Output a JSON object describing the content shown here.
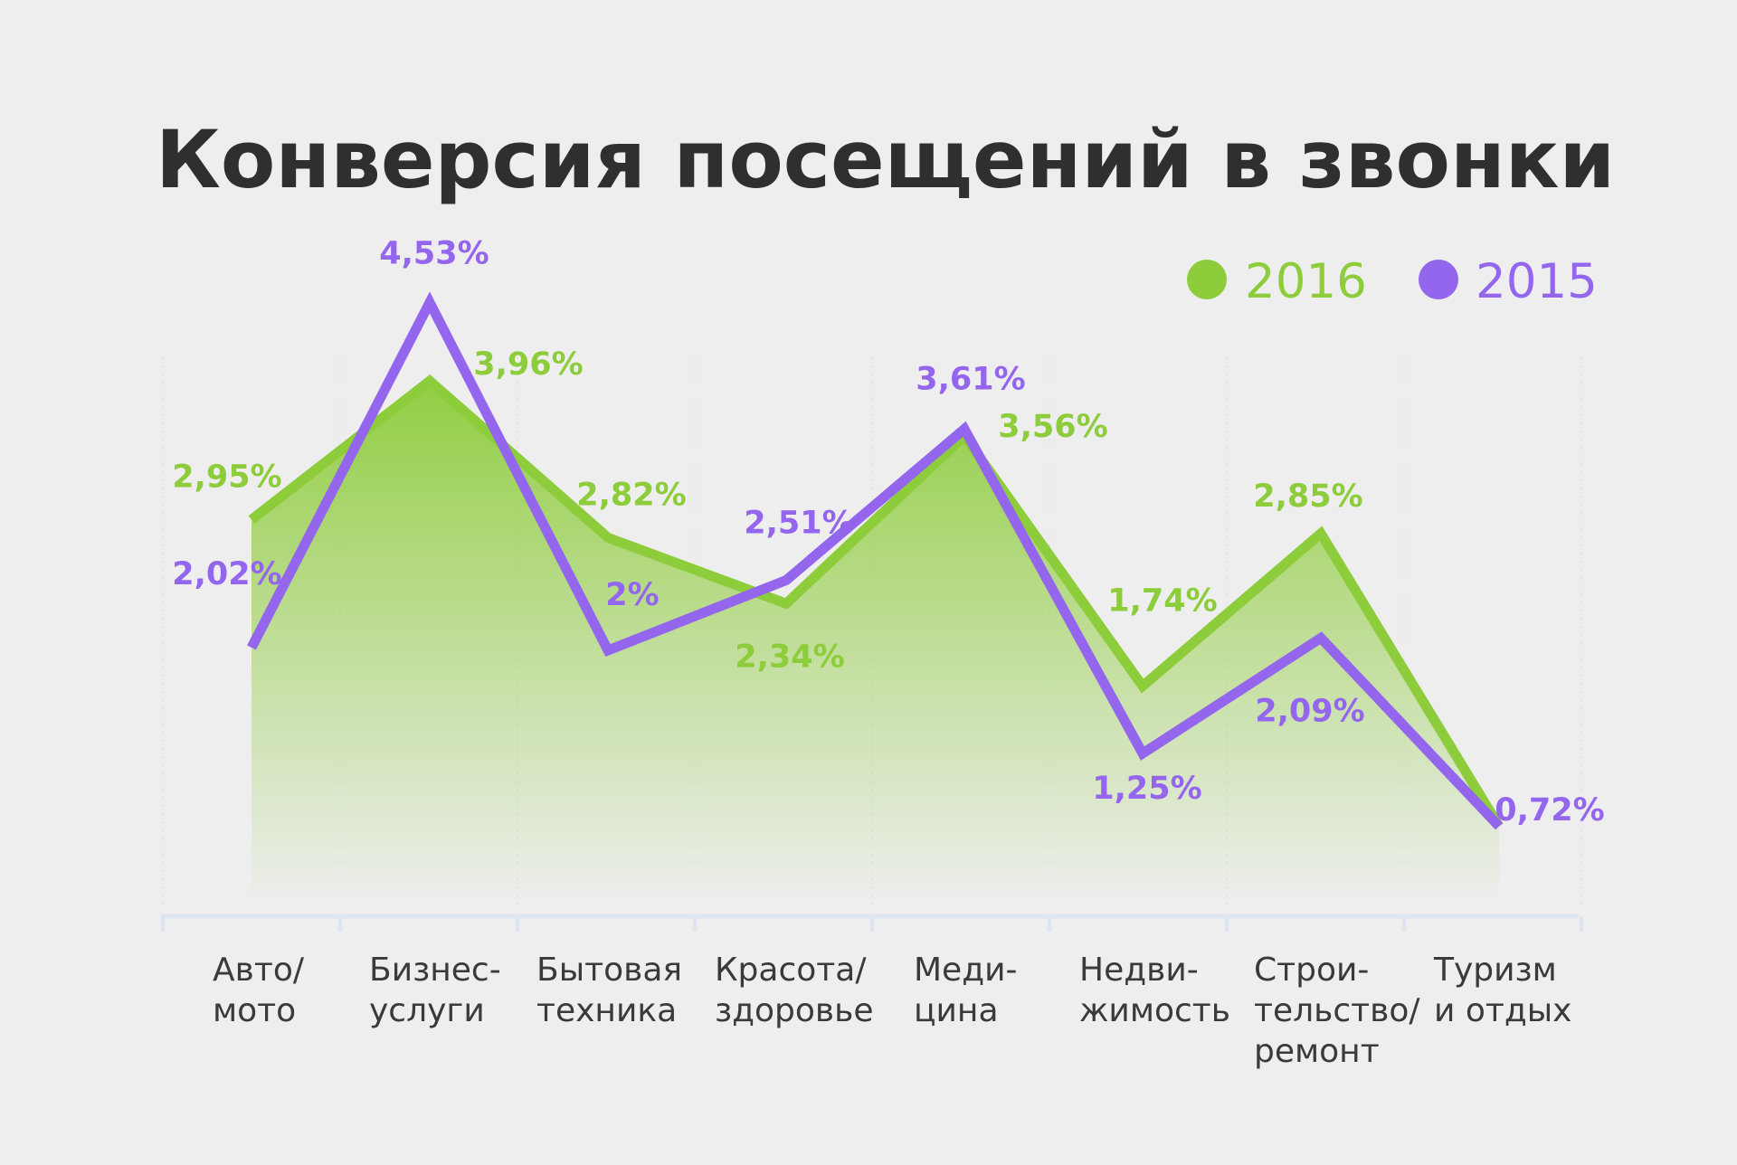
{
  "chart_data": {
    "type": "area",
    "title": "Конверсия посещений в звонки",
    "categories": [
      [
        "Авто/",
        "мото"
      ],
      [
        "Бизнес-",
        "услуги"
      ],
      [
        "Бытовая",
        "техника"
      ],
      [
        "Красота/",
        "здоровье"
      ],
      [
        "Меди-",
        "цина"
      ],
      [
        "Недви-",
        "жимость"
      ],
      [
        "Строи-",
        "тельство/",
        "ремонт"
      ],
      [
        "Туризм",
        "и отдых"
      ]
    ],
    "series": [
      {
        "name": "2016",
        "color": "#8dcc3a",
        "values": [
          2.95,
          3.96,
          2.82,
          2.34,
          3.56,
          1.74,
          2.85,
          0.72
        ],
        "labels": [
          "2,95%",
          "3,96%",
          "2,82%",
          "2,34%",
          "3,56%",
          "1,74%",
          "2,85%",
          "0,72%"
        ]
      },
      {
        "name": "2015",
        "color": "#9466ee",
        "values": [
          2.02,
          4.53,
          2.0,
          2.51,
          3.61,
          1.25,
          2.09,
          0.72
        ],
        "labels": [
          "2,02%",
          "4,53%",
          "2%",
          "2,51%",
          "3,61%",
          "1,25%",
          "2,09%",
          "0,72%"
        ]
      }
    ],
    "legend_position": "top-right",
    "grid": false
  }
}
